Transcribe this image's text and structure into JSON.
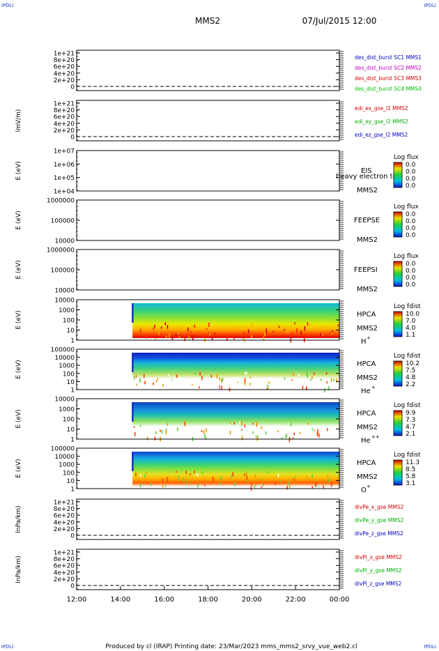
{
  "header": {
    "mission": "MMS2",
    "datetime": "07/Jul/2015 12:00",
    "corner_label": "IPDLI"
  },
  "footer": {
    "text": "Produced by cl (IRAP)   Printing date: 23/Mar/2023   mms_mms2_srvy_vue_web2.cl"
  },
  "x_axis": {
    "tick_labels": [
      "12:00",
      "14:00",
      "16:00",
      "18:00",
      "20:00",
      "22:00",
      "00:00"
    ],
    "range_hours": [
      12,
      24
    ]
  },
  "colors": {
    "sc1": "#0000c0",
    "sc2": "#c000c0",
    "sc3": "#d00000",
    "sc4": "#00c000",
    "x": "#d00000",
    "y": "#00b000",
    "z": "#0000c0"
  },
  "chart_data": [
    {
      "type": "line",
      "ylabel": "",
      "y_ticks": [
        "1e+21",
        "8e+20",
        "6e+20",
        "4e+20",
        "2e+20",
        "0"
      ],
      "zero_line": true,
      "legend": [
        {
          "text": "des_dist_burst SC1 MMS1",
          "color_key": "sc1"
        },
        {
          "text": "des_dist_burst SC2 MMS2",
          "color_key": "sc2"
        },
        {
          "text": "des_dist_burst SC3 MMS3",
          "color_key": "sc3"
        },
        {
          "text": "des_dist_burst SC4 MMS4",
          "color_key": "sc4"
        }
      ]
    },
    {
      "type": "line",
      "ylabel": "lmV/m)",
      "y_ticks": [
        "1e+21",
        "8e+20",
        "6e+20",
        "4e+20",
        "2e+20",
        "0"
      ],
      "zero_line": true,
      "legend": [
        {
          "text": "edi_ex_gse_l2 MMS2",
          "color_key": "x"
        },
        {
          "text": "edi_ey_gse_l2 MMS2",
          "color_key": "y"
        },
        {
          "text": "edi_ez_gse_l2 MMS2",
          "color_key": "z"
        }
      ]
    },
    {
      "type": "heatmap",
      "ylabel": "E (eV)",
      "y_ticks": [
        "1e+07",
        "1e+06",
        "1e+05",
        "1e+04"
      ],
      "instrument": "EIS",
      "subtitle": "heavy electron to",
      "probe": "MMS2",
      "colorbar_title": "Log flux",
      "colorbar_ticks": [
        "0.0",
        "0.0",
        "0.0",
        "0.0"
      ],
      "data_hours": []
    },
    {
      "type": "heatmap",
      "ylabel": "E (eV)",
      "y_ticks": [
        "1000000",
        "100000",
        "10000"
      ],
      "instrument": "FEEPSE",
      "probe": "MMS2",
      "colorbar_title": "Log flux",
      "colorbar_ticks": [
        "0.0",
        "0.0",
        "0.0",
        "0.0"
      ],
      "data_hours": []
    },
    {
      "type": "heatmap",
      "ylabel": "E (eV)",
      "y_ticks": [
        "1000000",
        "100000",
        "10000"
      ],
      "instrument": "FEEPSI",
      "probe": "MMS2",
      "colorbar_title": "Log flux",
      "colorbar_ticks": [
        "0.0",
        "0.0",
        "0.0",
        "0.0"
      ],
      "data_hours": []
    },
    {
      "type": "heatmap",
      "ylabel": "E (eV)",
      "y_ticks": [
        "10000",
        "1000",
        "100",
        "10",
        "1"
      ],
      "instrument": "HPCA",
      "probe": "MMS2",
      "species": "H",
      "charge": "+",
      "colorbar_title": "Log fdist",
      "colorbar_ticks": [
        "10.0",
        "7.0",
        "4.0",
        "1.1"
      ],
      "data_hours": [
        14.55,
        24
      ]
    },
    {
      "type": "heatmap",
      "ylabel": "E (eV)",
      "y_ticks": [
        "100000",
        "10000",
        "1000",
        "100",
        "10",
        "1"
      ],
      "instrument": "HPCA",
      "probe": "MMS2",
      "species": "He",
      "charge": "+",
      "colorbar_title": "Log fdist",
      "colorbar_ticks": [
        "10.2",
        "7.5",
        "4.8",
        "2.2"
      ],
      "data_hours": [
        14.55,
        24
      ]
    },
    {
      "type": "heatmap",
      "ylabel": "E (eV)",
      "y_ticks": [
        "10000",
        "1000",
        "100",
        "10",
        "1"
      ],
      "instrument": "HPCA",
      "probe": "MMS2",
      "species": "He",
      "charge": "++",
      "colorbar_title": "Log fdist",
      "colorbar_ticks": [
        "9.9",
        "7.3",
        "4.7",
        "2.1"
      ],
      "data_hours": [
        14.55,
        24
      ]
    },
    {
      "type": "heatmap",
      "ylabel": "E (eV)",
      "y_ticks": [
        "100000",
        "10000",
        "1000",
        "100",
        "10",
        "1"
      ],
      "instrument": "HPCA",
      "probe": "MMS2",
      "species": "O",
      "charge": "+",
      "colorbar_title": "Log fdist",
      "colorbar_ticks": [
        "11.3",
        "8.5",
        "5.8",
        "3.1"
      ],
      "data_hours": [
        14.55,
        24
      ]
    },
    {
      "type": "line",
      "ylabel": "lnPa/km)",
      "y_ticks": [
        "1e+21",
        "8e+20",
        "6e+20",
        "4e+20",
        "2e+20",
        "0"
      ],
      "zero_line": true,
      "legend": [
        {
          "text": "divPe_x_gse MMS2",
          "color_key": "x"
        },
        {
          "text": "divPe_y_gse MMS2",
          "color_key": "y"
        },
        {
          "text": "divPe_z_gse MMS2",
          "color_key": "z"
        }
      ]
    },
    {
      "type": "line",
      "ylabel": "lnPa/km)",
      "y_ticks": [
        "1e+21",
        "8e+20",
        "6e+20",
        "4e+20",
        "2e+20",
        "0"
      ],
      "zero_line": true,
      "legend": [
        {
          "text": "divPi_x_gse MMS2",
          "color_key": "x"
        },
        {
          "text": "divPi_y_gse MMS2",
          "color_key": "y"
        },
        {
          "text": "divPi_z_gse MMS2",
          "color_key": "z"
        }
      ]
    }
  ]
}
